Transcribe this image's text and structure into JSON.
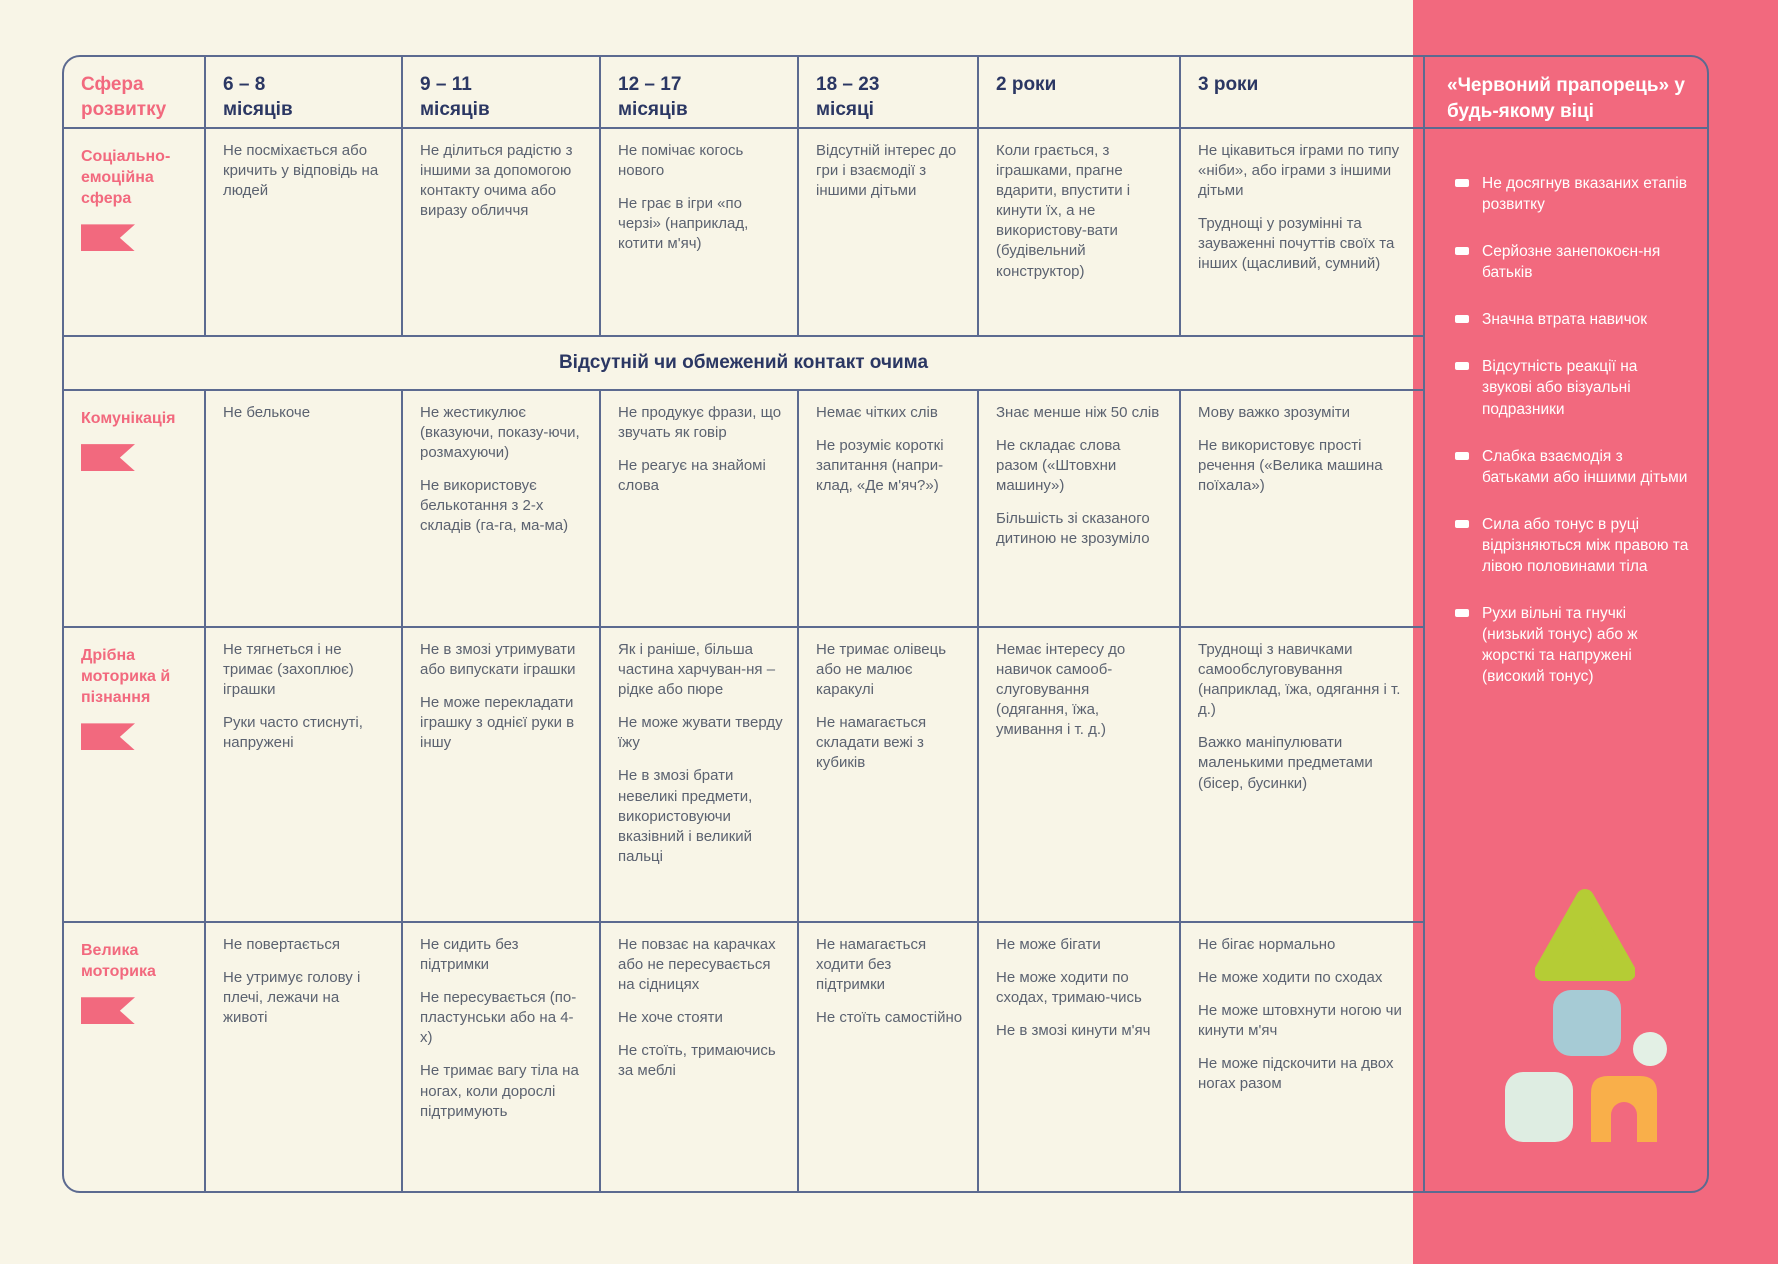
{
  "colors": {
    "background": "#F8F5E7",
    "pink": "#F2697E",
    "navy": "#2B3763",
    "body_text": "#5B6270",
    "border": "#5C6A90",
    "shape_green": "#B5CC35",
    "shape_blue": "#A6CBD5",
    "shape_mint": "#DEEDE2",
    "shape_circle": "#E3F0E5",
    "shape_orange": "#F9AF4A"
  },
  "table": {
    "header": {
      "area": "Сфера розвитку",
      "ages": [
        {
          "top": "6 – 8",
          "bottom": "місяців"
        },
        {
          "top": "9 – 11",
          "bottom": "місяців"
        },
        {
          "top": "12 – 17",
          "bottom": "місяців"
        },
        {
          "top": "18 – 23",
          "bottom": "місяці"
        },
        {
          "top": "2 роки",
          "bottom": ""
        },
        {
          "top": "3 роки",
          "bottom": ""
        }
      ]
    },
    "span_row": "Відсутній чи обмежений контакт очима",
    "rows": [
      {
        "label": "Соціально-емоційна сфера",
        "cells": [
          [
            "Не посміхається або кричить у відповідь на людей"
          ],
          [
            "Не ділиться радістю з іншими за допомогою контакту очима або виразу обличчя"
          ],
          [
            "Не помічає когось нового",
            "Не грає в ігри «по черзі» (наприклад, котити м'яч)"
          ],
          [
            "Відсутній інтерес до гри і взаємодії з іншими дітьми"
          ],
          [
            "Коли грається, з іграшками, прагне вдарити, впустити і кинути їх, а не використову-вати (будівельний конструктор)"
          ],
          [
            "Не цікавиться іграми по типу «ніби», або іграми з іншими дітьми",
            "Труднощі у розумінні та зауваженні почуттів своїх та інших (щасливий, сумний)"
          ]
        ]
      },
      {
        "label": "Комунікація",
        "cells": [
          [
            "Не белькоче"
          ],
          [
            "Не жестикулює (вказуючи, показу-ючи, розмахуючи)",
            "Не використовує белькотання з 2-х складів (га-га, ма-ма)"
          ],
          [
            "Не продукує фрази, що звучать як говір",
            "Не реагує на знайомі слова"
          ],
          [
            "Немає чітких слів",
            "Не розуміє короткі запитання (напри-клад, «Де м'яч?»)"
          ],
          [
            "Знає менше ніж 50 слів",
            "Не складає слова разом («Штовхни машину»)",
            "Більшість зі сказаного дитиною не зрозуміло"
          ],
          [
            "Мову важко зрозуміти",
            "Не використовує прості речення («Велика машина поїхала»)"
          ]
        ]
      },
      {
        "label": "Дрібна моторика й пізнання",
        "cells": [
          [
            "Не тягнеться і не тримає (захоплює) іграшки",
            "Руки часто стиснуті, напружені"
          ],
          [
            "Не в змозі утримувати або випускати іграшки",
            "Не може перекладати іграшку з однієї руки в іншу"
          ],
          [
            "Як і раніше, більша частина харчуван-ня – рідке або пюре",
            "Не може жувати тверду їжу",
            "Не в змозі брати невеликі предмети, використовуючи вказівний і великий пальці"
          ],
          [
            "Не тримає олівець або не малює каракулі",
            "Не намагається складати вежі з кубиків"
          ],
          [
            "Немає інтересу до навичок самооб-слуговування (одягання, їжа, умивання і т. д.)"
          ],
          [
            "Труднощі з навичками самообслуговування (наприклад, їжа, одягання і т. д.)",
            "Важко маніпулювати маленькими предметами (бісер, бусинки)"
          ]
        ]
      },
      {
        "label": "Велика моторика",
        "cells": [
          [
            "Не повертається",
            "Не утримує голову і плечі, лежачи на животі"
          ],
          [
            "Не сидить без підтримки",
            "Не пересувається (по-пластунськи або на 4-х)",
            "Не тримає вагу тіла на ногах, коли дорослі підтримують"
          ],
          [
            "Не повзає на карачках або не пересувається на сідницях",
            "Не хоче стояти",
            "Не стоїть, тримаючись за меблі"
          ],
          [
            "Не намагається ходити без підтримки",
            "Не стоїть самостійно"
          ],
          [
            "Не може бігати",
            "Не може ходити по сходах, тримаю-чись",
            "Не в змозі кинути м'яч"
          ],
          [
            "Не бігає нормально",
            "Не може ходити по сходах",
            "Не може штовхнути ногою чи кинути м'яч",
            "Не може підскочити на двох ногах разом"
          ]
        ]
      }
    ]
  },
  "sidebar": {
    "title": "«Червоний прапорець» у будь-якому віці",
    "items": [
      "Не досягнув вказаних етапів розвитку",
      "Серйозне занепокоєн-ня батьків",
      "Значна втрата навичок",
      "Відсутність реакції на звукові або візуальні подразники",
      "Слабка взаємодія з батьками або іншими дітьми",
      "Сила або тонус в руці відрізняються між правою та лівою половинами тіла",
      "Рухи вільні та гнучкі (низький тонус) або ж жорсткі та напружені (високий тонус)"
    ],
    "decor_shapes": [
      "triangle-block",
      "square-block",
      "circle-block",
      "square-block",
      "arch-block"
    ]
  }
}
